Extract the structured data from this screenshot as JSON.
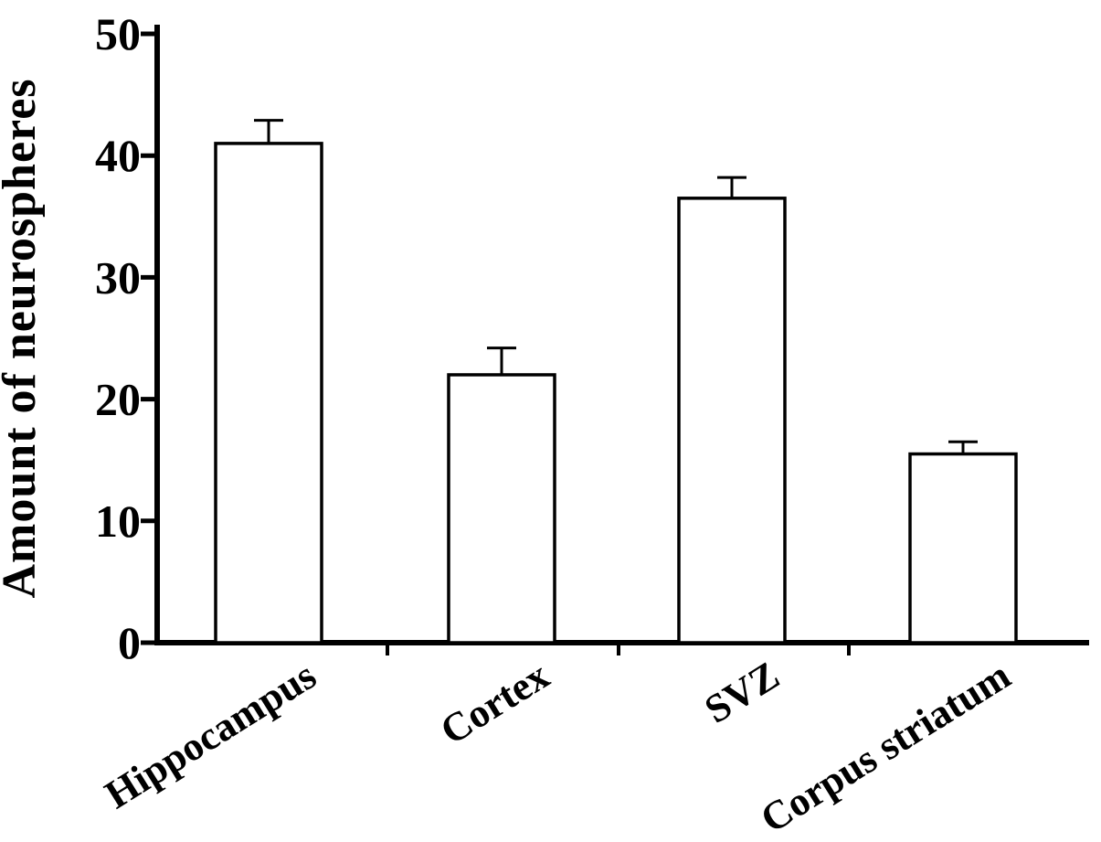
{
  "chart_data": {
    "type": "bar",
    "title": "",
    "categories": [
      "Hippocampus",
      "Cortex",
      "SVZ",
      "Corpus striatum"
    ],
    "values": [
      41,
      22,
      36.5,
      15.5
    ],
    "errors": [
      1.9,
      2.2,
      1.7,
      1.0
    ],
    "error_direction": "upper-only",
    "xlabel": "",
    "ylabel": "Amount of neurospheres",
    "ylim": [
      0,
      50
    ],
    "yticks": [
      0,
      10,
      20,
      30,
      40,
      50
    ],
    "grid": false,
    "legend": "none",
    "bar_fill": "#ffffff",
    "bar_stroke": "#000000",
    "axis_color": "#000000",
    "background": "#ffffff"
  }
}
